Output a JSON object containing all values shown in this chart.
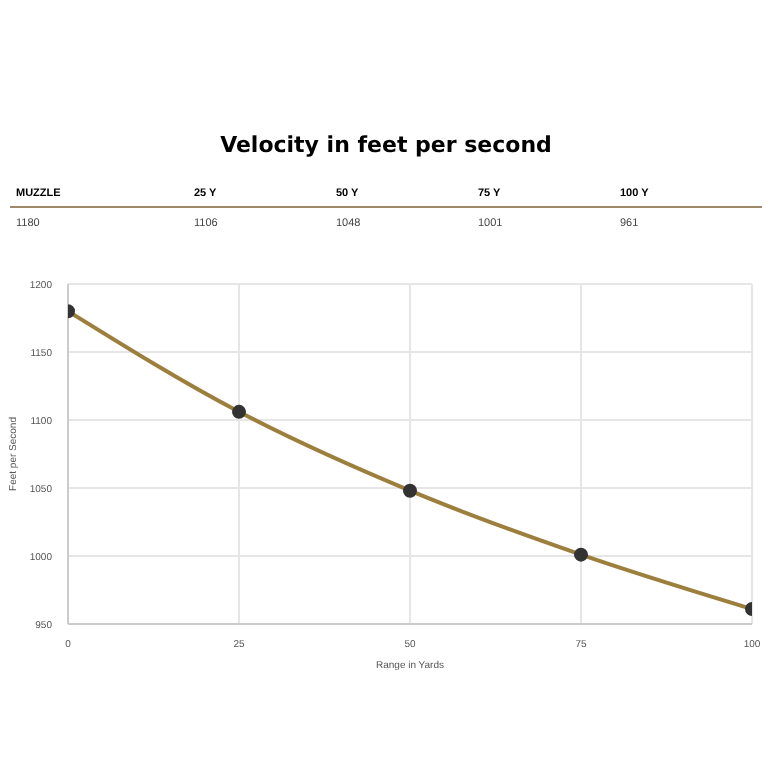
{
  "chart_data": {
    "type": "line",
    "title": "Velocity in feet per second",
    "xlabel": "Range in Yards",
    "ylabel": "Feet per Second",
    "annotations": [
      "MUZZLE",
      "25 Y",
      "50 Y",
      "75 Y",
      "100 Y",
      "1180",
      "1106",
      "1048",
      "1001",
      "961"
    ],
    "x": [
      0,
      25,
      50,
      75,
      100
    ],
    "series": [
      {
        "color": "#9c7f3c",
        "values": [
          1180,
          1106,
          1048,
          1001,
          961
        ]
      }
    ],
    "xlim": [
      0,
      100
    ],
    "xticks": [
      0,
      25,
      50,
      75,
      100
    ],
    "ylim": [
      950,
      1200
    ],
    "yticks": [
      950,
      1000,
      1050,
      1100,
      1150,
      1200
    ],
    "grid": true,
    "marker": "circle",
    "line_style": "solid"
  }
}
